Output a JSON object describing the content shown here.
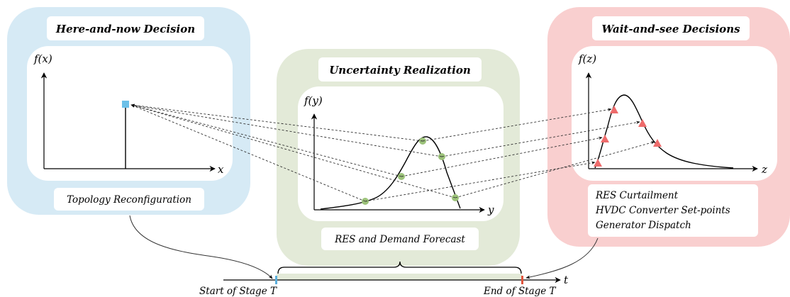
{
  "colors": {
    "blue_panel": "#d6eaf5",
    "green_panel": "#e3ead8",
    "red_panel": "#f9cfcf",
    "square_marker": "#6cc0e8",
    "circle_marker": "#9cc27a",
    "triangle_marker": "#ee6b6b",
    "timeline_start": "#5aaedc",
    "timeline_end": "#e0553d"
  },
  "panels": {
    "here_and_now": {
      "title": "Here-and-now Decision",
      "ylabel": "f(x)",
      "xlabel": "x",
      "caption": "Topology Reconfiguration",
      "marker": "square"
    },
    "uncertainty": {
      "title": "Uncertainty Realization",
      "ylabel": "f(y)",
      "xlabel": "y",
      "caption": "RES and Demand Forecast",
      "marker": "circle"
    },
    "wait_and_see": {
      "title": "Wait-and-see Decisions",
      "ylabel": "f(z)",
      "xlabel": "z",
      "caption_lines": [
        "RES Curtailment",
        "HVDC Converter Set-points",
        "Generator Dispatch"
      ],
      "marker": "triangle"
    }
  },
  "timeline": {
    "axis_label": "t",
    "start_label": "Start of Stage T",
    "end_label": "End of Stage T"
  }
}
